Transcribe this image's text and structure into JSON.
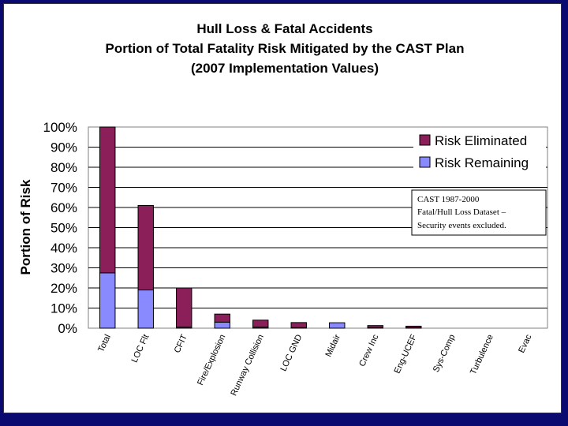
{
  "chart_data": {
    "type": "bar",
    "stacked": true,
    "title": [
      "Hull Loss & Fatal Accidents",
      "Portion of Total Fatality Risk Mitigated by the CAST  Plan",
      "(2007 Implementation Values)"
    ],
    "xlabel": "",
    "ylabel": "Portion of Risk",
    "ylim": [
      0,
      100
    ],
    "yticks": [
      "0%",
      "10%",
      "20%",
      "30%",
      "40%",
      "50%",
      "60%",
      "70%",
      "80%",
      "90%",
      "100%"
    ],
    "categories": [
      "Total",
      "LOC Flt",
      "CFIT",
      "Fire/Explosion",
      "Runway Collision",
      "LOC GND",
      "Midair",
      "Crew Inc",
      "Eng-UCEF",
      "Sys-Comp",
      "Turbulence",
      "Evac"
    ],
    "series": [
      {
        "name": "Risk Remaining",
        "color": "#8a8aff",
        "values": [
          27.5,
          19,
          0.5,
          3,
          0.5,
          0.3,
          2.7,
          0.3,
          0.3,
          0,
          0,
          0
        ]
      },
      {
        "name": "Risk Eliminated",
        "color": "#8b1f5a",
        "values": [
          72.5,
          42,
          19.5,
          4,
          3.5,
          2.5,
          0,
          1,
          0.7,
          0,
          0,
          0
        ]
      }
    ],
    "legend": {
      "placement": "top-right",
      "entries": [
        "Risk Eliminated",
        "Risk Remaining"
      ]
    },
    "annotations": [
      "CAST 1987-2000",
      "Fatal/Hull Loss Dataset –",
      "Security events excluded."
    ],
    "grid": true
  }
}
